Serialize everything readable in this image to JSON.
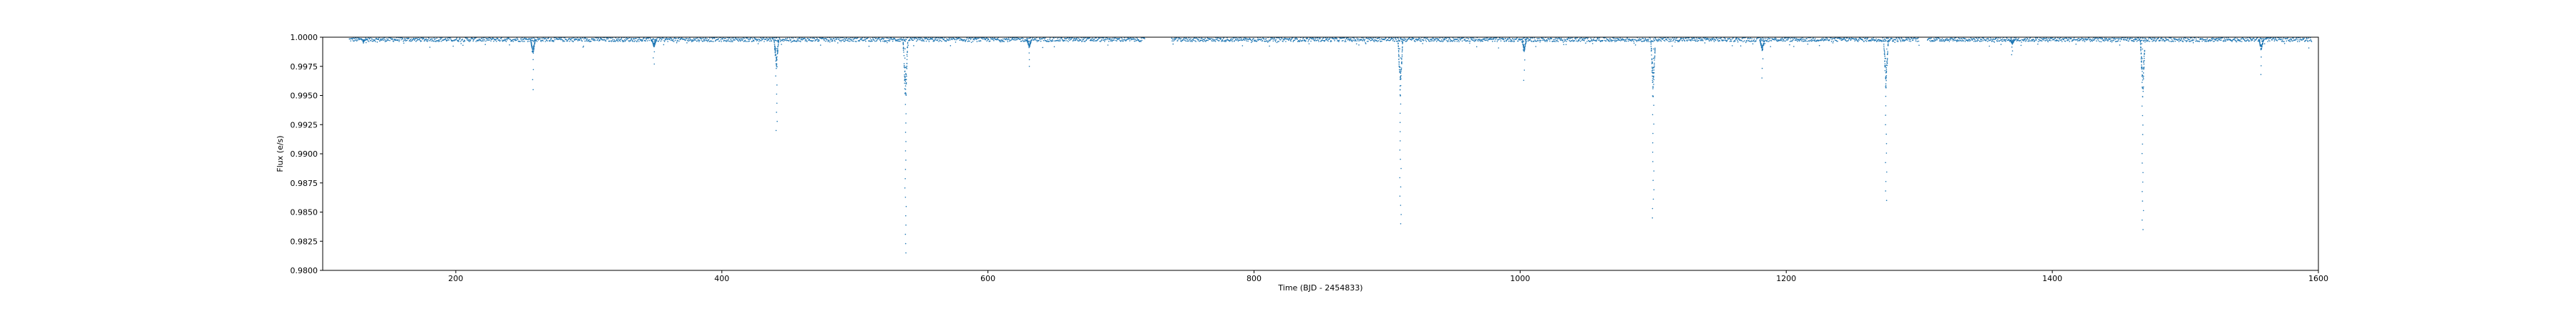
{
  "chart_data": {
    "type": "scatter",
    "xlabel": "Time (BJD - 2454833)",
    "ylabel": "Flux (e/s)",
    "xlim": [
      100,
      1600
    ],
    "ylim": [
      0.98,
      1.0
    ],
    "xticks": [
      200,
      400,
      600,
      800,
      1000,
      1200,
      1400,
      1600
    ],
    "yticks": [
      0.98,
      0.9825,
      0.985,
      0.9875,
      0.99,
      0.9925,
      0.995,
      0.9975,
      1.0
    ],
    "ytick_labels": [
      "0.9800",
      "0.9825",
      "0.9850",
      "0.9875",
      "0.9900",
      "0.9925",
      "0.9950",
      "0.9975",
      "1.0000"
    ],
    "grid": false,
    "series": [
      {
        "color": "#1f77b4",
        "marker": "small-dot",
        "baseline": 0.9998,
        "x_range": [
          120,
          1595
        ],
        "gaps": [
          [
            718,
            738
          ],
          [
            1300,
            1306
          ]
        ],
        "transits": [
          {
            "x": 131,
            "min": 0.9995
          },
          {
            "x": 258,
            "min": 0.9955
          },
          {
            "x": 349,
            "min": 0.9977
          },
          {
            "x": 441,
            "min": 0.992
          },
          {
            "x": 538,
            "min": 0.9815
          },
          {
            "x": 631,
            "min": 0.9975
          },
          {
            "x": 910,
            "min": 0.984
          },
          {
            "x": 1003,
            "min": 0.9963
          },
          {
            "x": 1100,
            "min": 0.9845
          },
          {
            "x": 1182,
            "min": 0.9965
          },
          {
            "x": 1275,
            "min": 0.986
          },
          {
            "x": 1370,
            "min": 0.9985
          },
          {
            "x": 1468,
            "min": 0.9835
          },
          {
            "x": 1557,
            "min": 0.9968
          }
        ]
      }
    ]
  }
}
